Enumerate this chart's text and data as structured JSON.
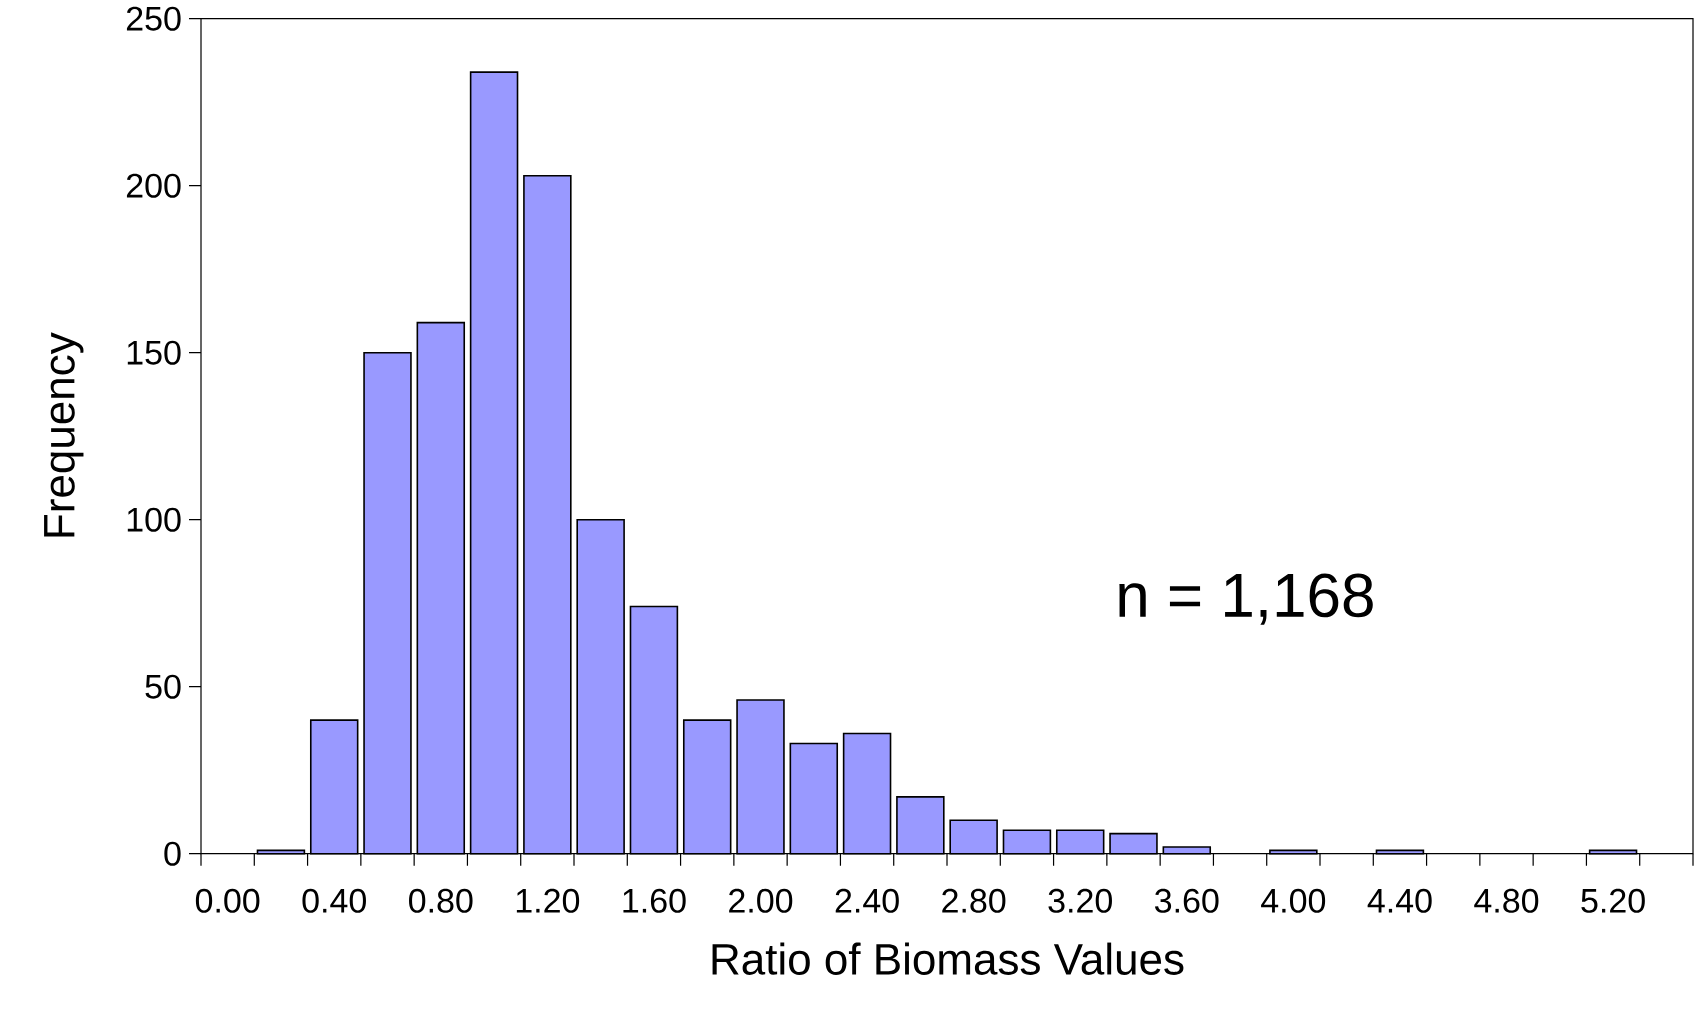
{
  "chart_data": {
    "type": "bar",
    "xlabel": "Ratio of Biomass Values",
    "ylabel": "Frequency",
    "categories": [
      "0.00",
      null,
      "0.40",
      null,
      "0.80",
      null,
      "1.20",
      null,
      "1.60",
      null,
      "2.00",
      null,
      "2.40",
      null,
      "2.80",
      null,
      "3.20",
      null,
      "3.60",
      null,
      "4.00",
      null,
      "4.40",
      null,
      "4.80",
      null,
      "5.20",
      null
    ],
    "values": [
      0,
      1,
      40,
      150,
      159,
      234,
      203,
      100,
      74,
      40,
      46,
      33,
      36,
      17,
      10,
      7,
      7,
      6,
      2,
      0,
      1,
      0,
      1,
      0,
      0,
      0,
      1,
      0
    ],
    "color": "#9999ff",
    "ylim": [
      0,
      250
    ],
    "yticks": [
      0,
      50,
      100,
      150,
      200,
      250
    ],
    "annotations": [
      "n = 1,168"
    ]
  }
}
